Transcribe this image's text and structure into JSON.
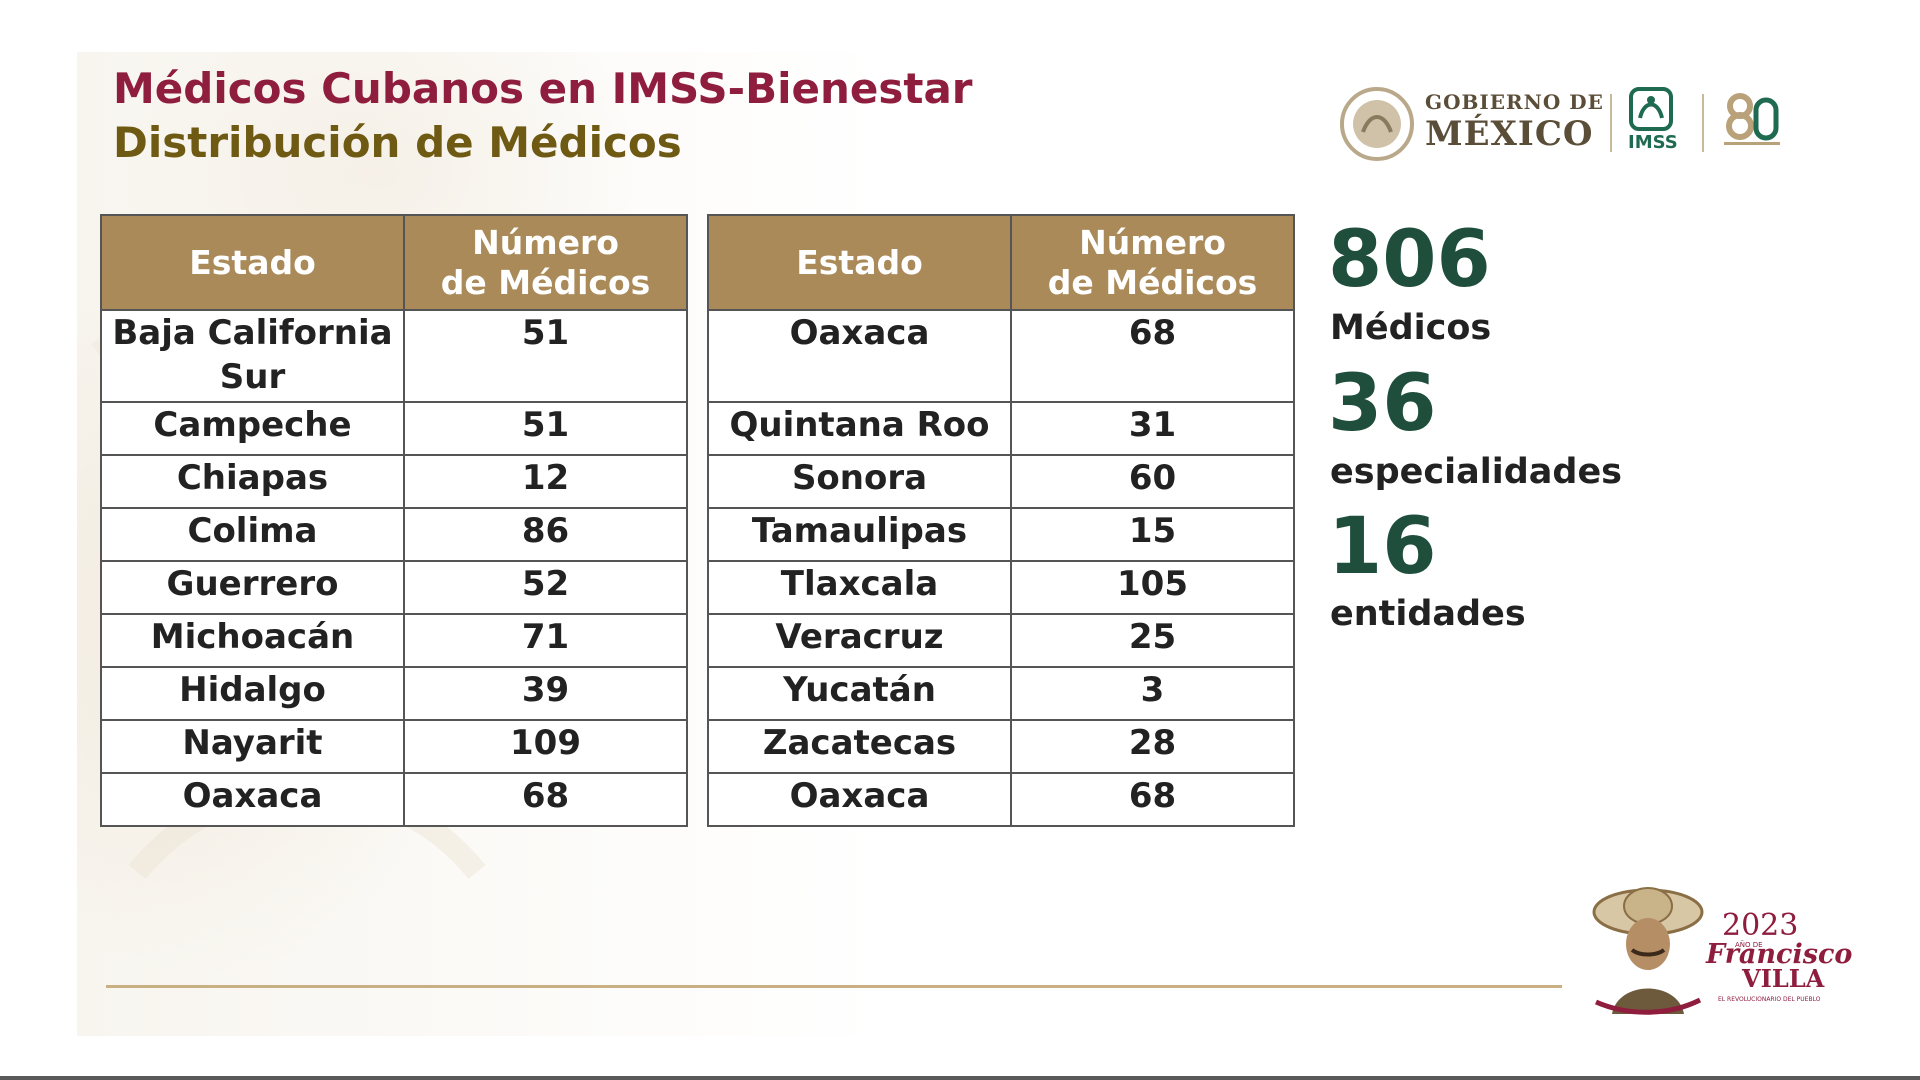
{
  "header": {
    "title": "Médicos Cubanos en IMSS-Bienestar",
    "subtitle": "Distribución de Médicos"
  },
  "logos": {
    "gobierno_line1": "GOBIERNO DE",
    "gobierno_line2": "MÉXICO",
    "imss": "IMSS"
  },
  "table_headers": {
    "estado": "Estado",
    "numero_line1": "Número",
    "numero_line2": "de Médicos"
  },
  "table_left": {
    "rows": [
      {
        "estado": "Baja California Sur",
        "numero": "51"
      },
      {
        "estado": "Campeche",
        "numero": "51"
      },
      {
        "estado": "Chiapas",
        "numero": "12"
      },
      {
        "estado": "Colima",
        "numero": "86"
      },
      {
        "estado": "Guerrero",
        "numero": "52"
      },
      {
        "estado": "Michoacán",
        "numero": "71"
      },
      {
        "estado": "Hidalgo",
        "numero": "39"
      },
      {
        "estado": "Nayarit",
        "numero": "109"
      },
      {
        "estado": "Oaxaca",
        "numero": "68"
      }
    ]
  },
  "table_right": {
    "rows": [
      {
        "estado": "Oaxaca",
        "numero": "68"
      },
      {
        "estado": "Quintana Roo",
        "numero": "31"
      },
      {
        "estado": "Sonora",
        "numero": "60"
      },
      {
        "estado": "Tamaulipas",
        "numero": "15"
      },
      {
        "estado": "Tlaxcala",
        "numero": "105"
      },
      {
        "estado": "Veracruz",
        "numero": "25"
      },
      {
        "estado": "Yucatán",
        "numero": "3"
      },
      {
        "estado": "Zacatecas",
        "numero": "28"
      },
      {
        "estado": "Oaxaca",
        "numero": "68"
      }
    ]
  },
  "stats": {
    "medicos_value": "806",
    "medicos_label": "Médicos",
    "especialidades_value": "36",
    "especialidades_label": "especialidades",
    "entidades_value": "16",
    "entidades_label": "entidades"
  },
  "footer": {
    "year": "2023",
    "year_caption": "AÑO DE",
    "name_line1": "Francisco",
    "name_line2": "VILLA",
    "caption": "EL REVOLUCIONARIO DEL PUEBLO"
  },
  "colors": {
    "title": "#8e1d3e",
    "subtitle": "#6f5a13",
    "header_fill": "#a98a58",
    "stat_number": "#1f4e3d"
  }
}
